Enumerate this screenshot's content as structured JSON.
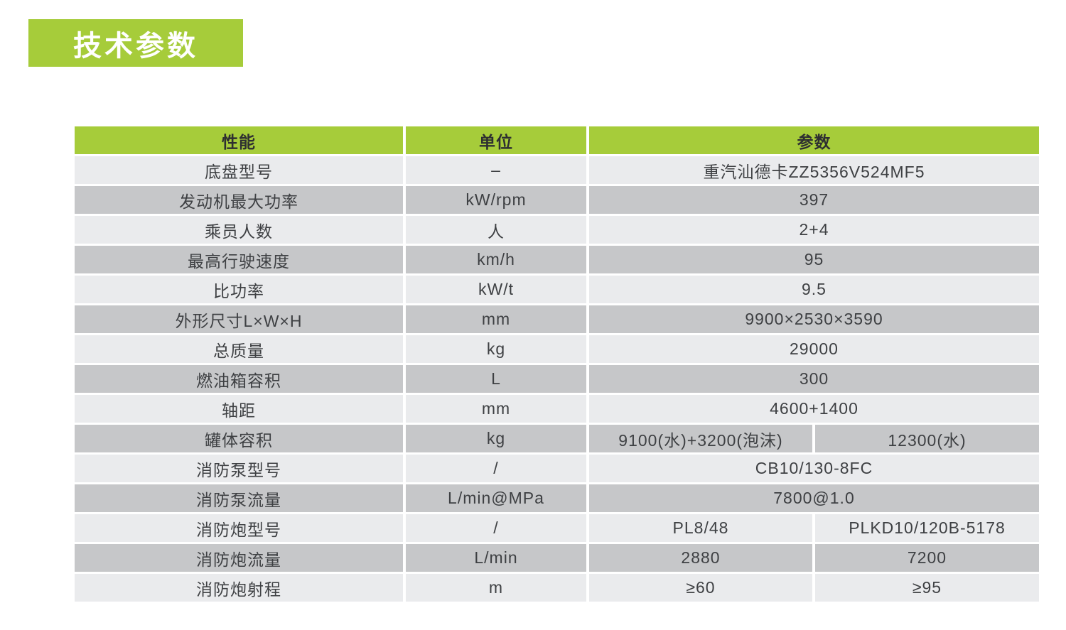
{
  "title": {
    "text": "技术参数"
  },
  "colors": {
    "accent_green": "#a6cc3a",
    "row_light": "#eaebed",
    "row_dark": "#c6c7c9",
    "text_dark": "#3e4043",
    "title_text": "#ffffff"
  },
  "table": {
    "headers": [
      "性能",
      "单位",
      "参数"
    ],
    "rows": [
      {
        "label": "底盘型号",
        "unit": "–",
        "value": "重汽汕德卡ZZ5356V524MF5"
      },
      {
        "label": "发动机最大功率",
        "unit": "kW/rpm",
        "value": "397"
      },
      {
        "label": "乘员人数",
        "unit": "人",
        "value": "2+4"
      },
      {
        "label": "最高行驶速度",
        "unit": "km/h",
        "value": "95"
      },
      {
        "label": "比功率",
        "unit": "kW/t",
        "value": "9.5"
      },
      {
        "label": "外形尺寸L×W×H",
        "unit": "mm",
        "value": "9900×2530×3590"
      },
      {
        "label": "总质量",
        "unit": "kg",
        "value": "29000"
      },
      {
        "label": "燃油箱容积",
        "unit": "L",
        "value": "300"
      },
      {
        "label": "轴距",
        "unit": "mm",
        "value": "4600+1400"
      },
      {
        "label": "罐体容积",
        "unit": "kg",
        "values": [
          "9100(水)+3200(泡沫)",
          "12300(水)"
        ]
      },
      {
        "label": "消防泵型号",
        "unit": "/",
        "value": "CB10/130-8FC"
      },
      {
        "label": "消防泵流量",
        "unit": "L/min@MPa",
        "value": "7800@1.0"
      },
      {
        "label": "消防炮型号",
        "unit": "/",
        "values": [
          "PL8/48",
          "PLKD10/120B-5178"
        ]
      },
      {
        "label": "消防炮流量",
        "unit": "L/min",
        "values": [
          "2880",
          "7200"
        ]
      },
      {
        "label": "消防炮射程",
        "unit": "m",
        "values": [
          "≥60",
          "≥95"
        ]
      }
    ]
  }
}
